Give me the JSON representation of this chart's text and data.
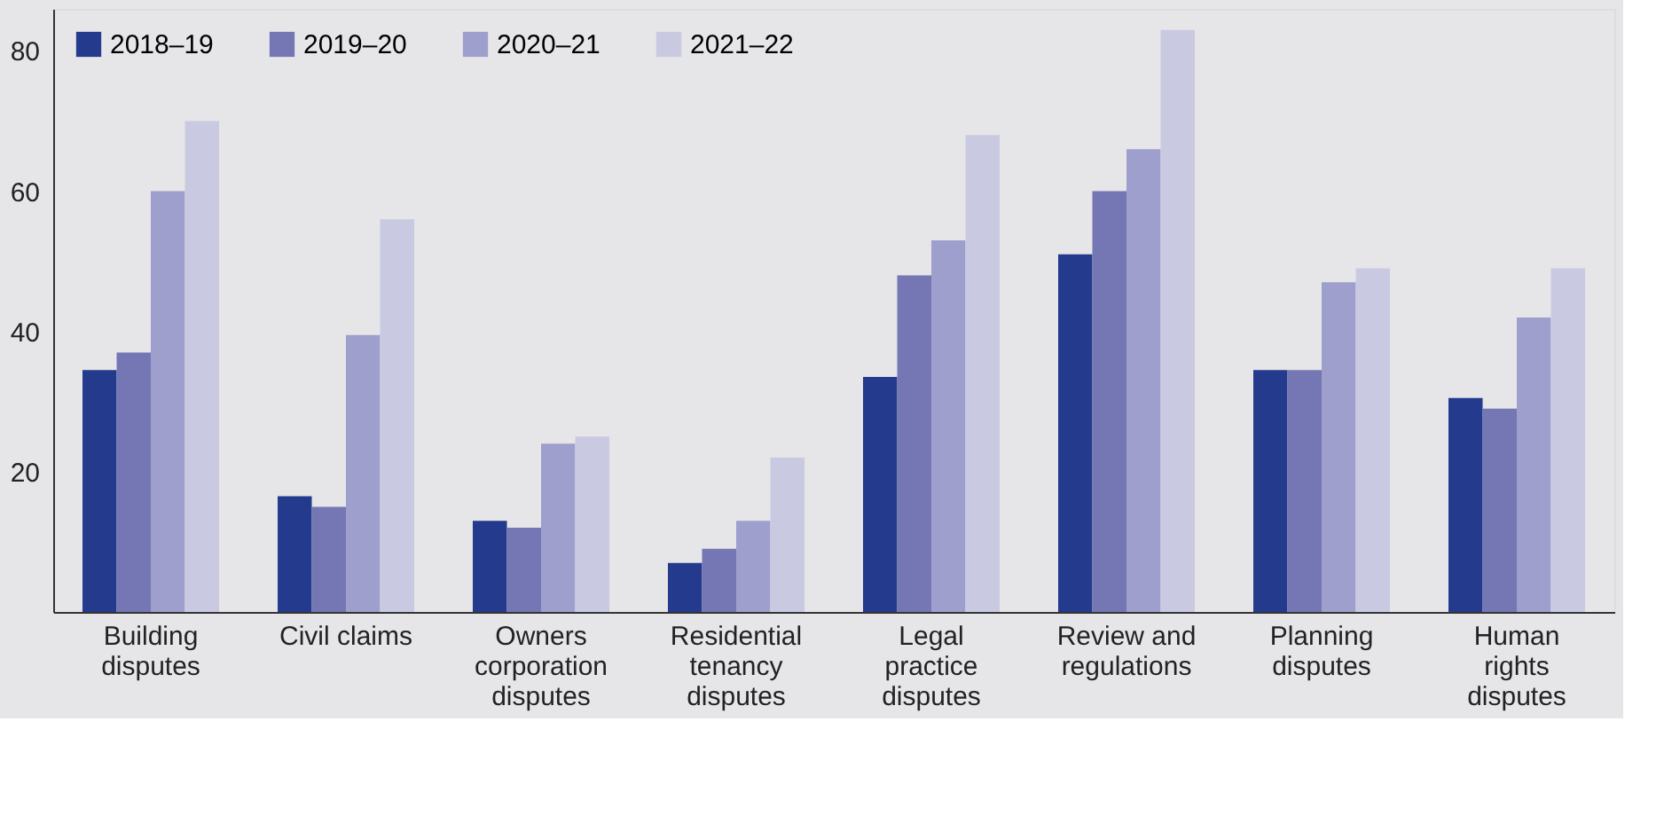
{
  "chart_data": {
    "type": "bar",
    "categories": [
      "Building\ndisputes",
      "Civil claims",
      "Owners\ncorporation\ndisputes",
      "Residential\ntenancy\ndisputes",
      "Legal\npractice\ndisputes",
      "Review and\nregulations",
      "Planning\ndisputes",
      "Human\nrights\ndisputes"
    ],
    "series": [
      {
        "name": "2018–19",
        "color": "#243a8c",
        "values": [
          34.5,
          16.5,
          13,
          7,
          33.5,
          51,
          34.5,
          30.5
        ]
      },
      {
        "name": "2019–20",
        "color": "#7477b4",
        "values": [
          37,
          15,
          12,
          9,
          48,
          60,
          34.5,
          29
        ]
      },
      {
        "name": "2020–21",
        "color": "#9e9fcc",
        "values": [
          60,
          39.5,
          24,
          13,
          53,
          66,
          47,
          42
        ]
      },
      {
        "name": "2021–22",
        "color": "#c9c9e2",
        "values": [
          70,
          56,
          25,
          22,
          68,
          83,
          49,
          49
        ]
      }
    ],
    "ylim": [
      0,
      86
    ],
    "yticks": [
      20,
      40,
      60,
      80
    ],
    "grid": false,
    "legend": "top left"
  }
}
